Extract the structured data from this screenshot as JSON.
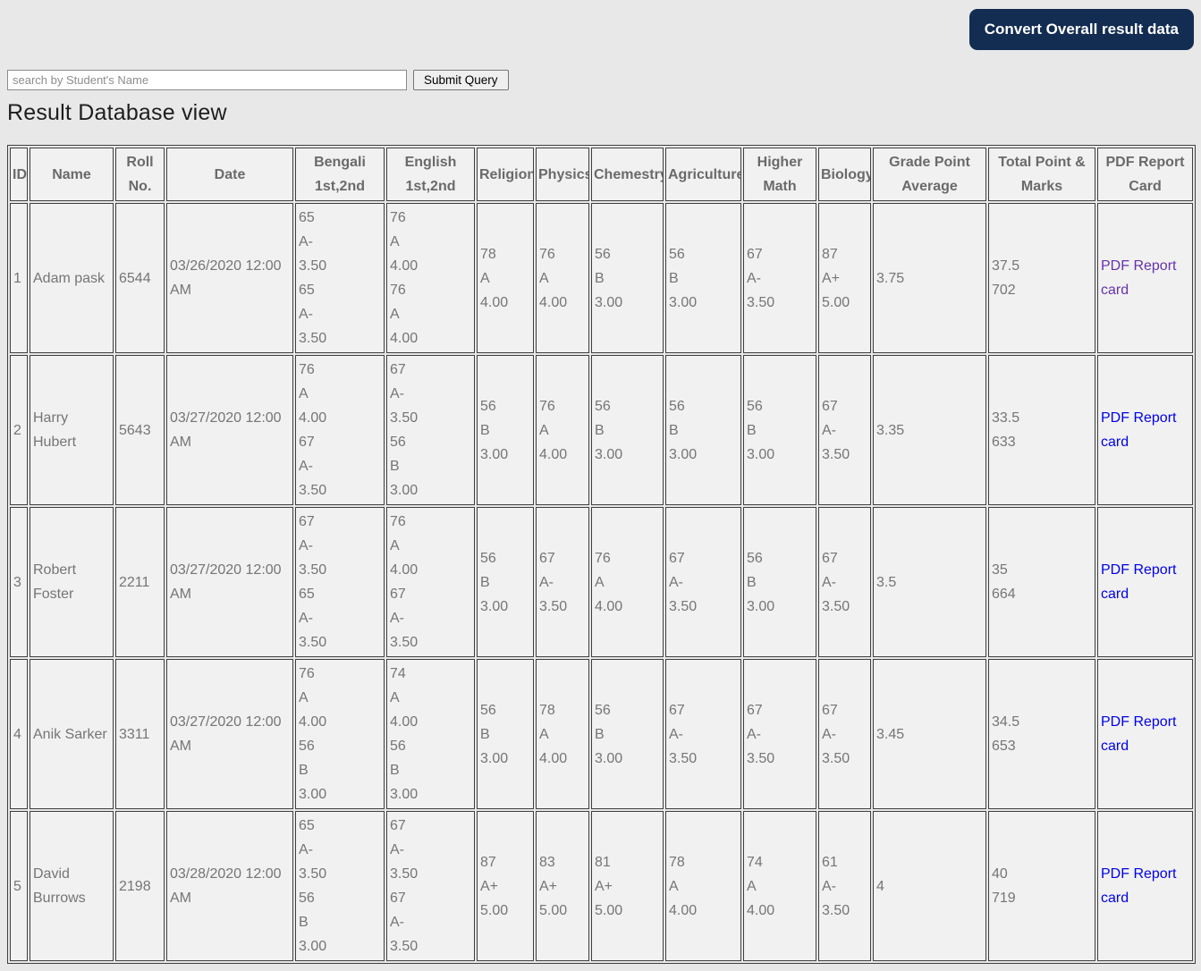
{
  "toolbar": {
    "convert_button_label": "Convert Overall result data",
    "convert_button_bg": "#132c52"
  },
  "search": {
    "placeholder": "search by Student's Name",
    "submit_label": "Submit Query"
  },
  "page_title": "Result Database view",
  "table": {
    "columns": [
      "ID",
      "Name",
      "Roll No.",
      "Date",
      "Bengali 1st,2nd",
      "English 1st,2nd",
      "Religion",
      "Physics",
      "Chemestry",
      "Agriculture",
      "Higher Math",
      "Biology",
      "Grade Point Average",
      "Total Point & Marks",
      "PDF Report Card"
    ],
    "pdf_link_label": "PDF Report card",
    "link_color": "#0000e8",
    "link_visited_color": "#6633aa",
    "rows": [
      {
        "id": "1",
        "name": "Adam pask",
        "roll": "6544",
        "date": "03/26/2020 12:00 AM",
        "bengali": [
          "65",
          "A-",
          "3.50",
          "65",
          "A-",
          "3.50"
        ],
        "english": [
          "76",
          "A",
          "4.00",
          "76",
          "A",
          "4.00"
        ],
        "religion": [
          "78",
          "A",
          "4.00"
        ],
        "physics": [
          "76",
          "A",
          "4.00"
        ],
        "chemestry": [
          "56",
          "B",
          "3.00"
        ],
        "agriculture": [
          "56",
          "B",
          "3.00"
        ],
        "higher_math": [
          "67",
          "A-",
          "3.50"
        ],
        "biology": [
          "87",
          "A+",
          "5.00"
        ],
        "gpa": "3.75",
        "total": [
          "37.5",
          "702"
        ],
        "pdf_visited": true
      },
      {
        "id": "2",
        "name": "Harry Hubert",
        "roll": "5643",
        "date": "03/27/2020 12:00 AM",
        "bengali": [
          "76",
          "A",
          "4.00",
          "67",
          "A-",
          "3.50"
        ],
        "english": [
          "67",
          "A-",
          "3.50",
          "56",
          "B",
          "3.00"
        ],
        "religion": [
          "56",
          "B",
          "3.00"
        ],
        "physics": [
          "76",
          "A",
          "4.00"
        ],
        "chemestry": [
          "56",
          "B",
          "3.00"
        ],
        "agriculture": [
          "56",
          "B",
          "3.00"
        ],
        "higher_math": [
          "56",
          "B",
          "3.00"
        ],
        "biology": [
          "67",
          "A-",
          "3.50"
        ],
        "gpa": "3.35",
        "total": [
          "33.5",
          "633"
        ],
        "pdf_visited": false
      },
      {
        "id": "3",
        "name": "Robert Foster",
        "roll": "2211",
        "date": "03/27/2020 12:00 AM",
        "bengali": [
          "67",
          "A-",
          "3.50",
          "65",
          "A-",
          "3.50"
        ],
        "english": [
          "76",
          "A",
          "4.00",
          "67",
          "A-",
          "3.50"
        ],
        "religion": [
          "56",
          "B",
          "3.00"
        ],
        "physics": [
          "67",
          "A-",
          "3.50"
        ],
        "chemestry": [
          "76",
          "A",
          "4.00"
        ],
        "agriculture": [
          "67",
          "A-",
          "3.50"
        ],
        "higher_math": [
          "56",
          "B",
          "3.00"
        ],
        "biology": [
          "67",
          "A-",
          "3.50"
        ],
        "gpa": "3.5",
        "total": [
          "35",
          "664"
        ],
        "pdf_visited": false
      },
      {
        "id": "4",
        "name": "Anik Sarker",
        "roll": "3311",
        "date": "03/27/2020 12:00 AM",
        "bengali": [
          "76",
          "A",
          "4.00",
          "56",
          "B",
          "3.00"
        ],
        "english": [
          "74",
          "A",
          "4.00",
          "56",
          "B",
          "3.00"
        ],
        "religion": [
          "56",
          "B",
          "3.00"
        ],
        "physics": [
          "78",
          "A",
          "4.00"
        ],
        "chemestry": [
          "56",
          "B",
          "3.00"
        ],
        "agriculture": [
          "67",
          "A-",
          "3.50"
        ],
        "higher_math": [
          "67",
          "A-",
          "3.50"
        ],
        "biology": [
          "67",
          "A-",
          "3.50"
        ],
        "gpa": "3.45",
        "total": [
          "34.5",
          "653"
        ],
        "pdf_visited": false
      },
      {
        "id": "5",
        "name": "David Burrows",
        "roll": "2198",
        "date": "03/28/2020 12:00 AM",
        "bengali": [
          "65",
          "A-",
          "3.50",
          "56",
          "B",
          "3.00"
        ],
        "english": [
          "67",
          "A-",
          "3.50",
          "67",
          "A-",
          "3.50"
        ],
        "religion": [
          "87",
          "A+",
          "5.00"
        ],
        "physics": [
          "83",
          "A+",
          "5.00"
        ],
        "chemestry": [
          "81",
          "A+",
          "5.00"
        ],
        "agriculture": [
          "78",
          "A",
          "4.00"
        ],
        "higher_math": [
          "74",
          "A",
          "4.00"
        ],
        "biology": [
          "61",
          "A-",
          "3.50"
        ],
        "gpa": "4",
        "total": [
          "40",
          "719"
        ],
        "pdf_visited": false
      }
    ]
  }
}
